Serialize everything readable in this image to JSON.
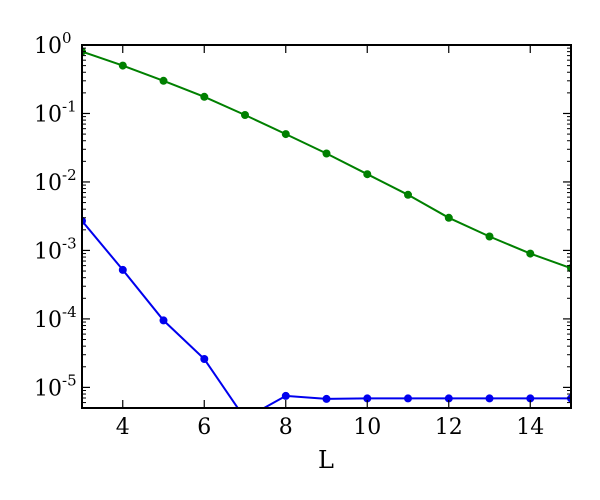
{
  "chart_data": {
    "type": "line",
    "xlabel": "L",
    "ylabel": "",
    "title": "",
    "xscale": "linear",
    "yscale": "log",
    "xlim": [
      3,
      15
    ],
    "ylim": [
      5e-06,
      1
    ],
    "grid": false,
    "legend": "none",
    "x_ticks": [
      4,
      6,
      8,
      10,
      12,
      14
    ],
    "x_tick_labels": [
      "4",
      "6",
      "8",
      "10",
      "12",
      "14"
    ],
    "y_ticks": [
      1e-05,
      0.0001,
      0.001,
      0.01,
      0.1,
      1
    ],
    "y_tick_labels": [
      {
        "base": "10",
        "exp": "-5"
      },
      {
        "base": "10",
        "exp": "-4"
      },
      {
        "base": "10",
        "exp": "-3"
      },
      {
        "base": "10",
        "exp": "-2"
      },
      {
        "base": "10",
        "exp": "-1"
      },
      {
        "base": "10",
        "exp": "0"
      }
    ],
    "series": [
      {
        "color": "#008000",
        "x": [
          3,
          4,
          5,
          6,
          7,
          8,
          9,
          10,
          11,
          12,
          13,
          14,
          15
        ],
        "y": [
          0.8,
          0.5,
          0.3,
          0.175,
          0.095,
          0.05,
          0.026,
          0.013,
          0.0065,
          0.003,
          0.0016,
          0.0009,
          0.00055
        ]
      },
      {
        "color": "#0000ee",
        "x": [
          3,
          4,
          5,
          6,
          7,
          8,
          9,
          10,
          11,
          12,
          13,
          14,
          15
        ],
        "y": [
          0.0027,
          0.00052,
          9.5e-05,
          2.6e-05,
          3.5e-06,
          7.5e-06,
          6.8e-06,
          6.9e-06,
          6.9e-06,
          6.9e-06,
          6.9e-06,
          6.9e-06,
          6.9e-06
        ]
      }
    ]
  }
}
